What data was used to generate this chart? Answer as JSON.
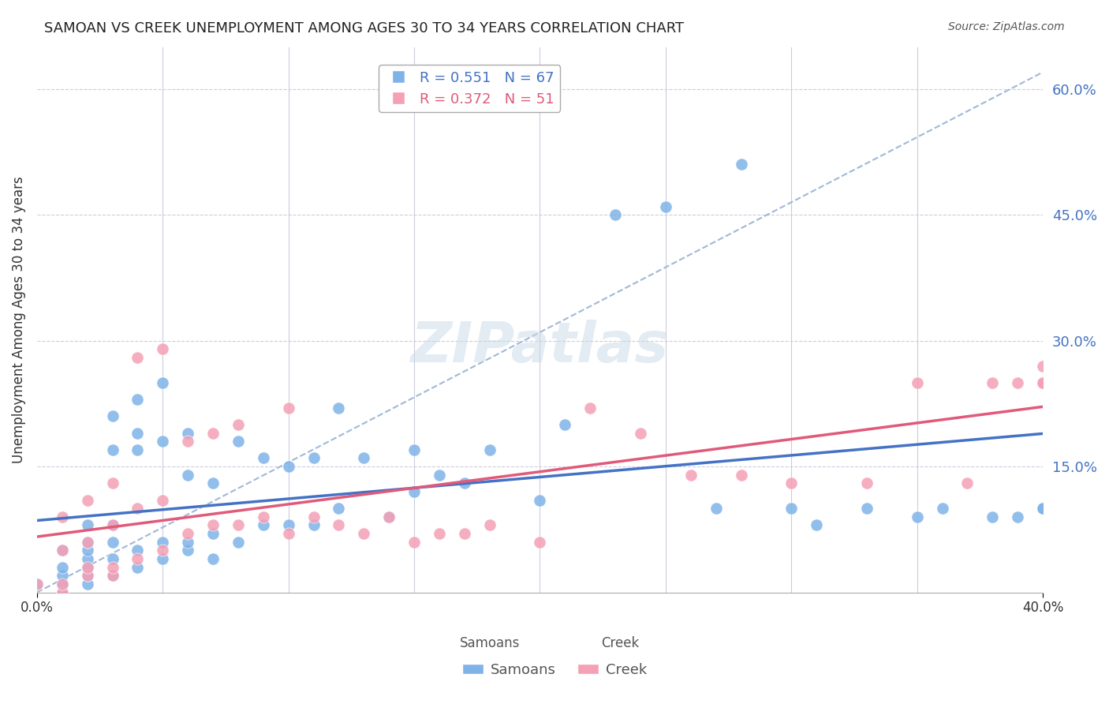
{
  "title": "SAMOAN VS CREEK UNEMPLOYMENT AMONG AGES 30 TO 34 YEARS CORRELATION CHART",
  "source": "Source: ZipAtlas.com",
  "xlabel": "",
  "ylabel": "Unemployment Among Ages 30 to 34 years",
  "xlim": [
    0.0,
    0.4
  ],
  "ylim": [
    0.0,
    0.65
  ],
  "xticks": [
    0.0,
    0.4
  ],
  "xtick_labels": [
    "0.0%",
    "40.0%"
  ],
  "yticks_right": [
    0.15,
    0.3,
    0.45,
    0.6
  ],
  "ytick_right_labels": [
    "15.0%",
    "30.0%",
    "45.0%",
    "60.0%"
  ],
  "grid_color": "#ccccdd",
  "background_color": "#ffffff",
  "samoans_color": "#7fb3e8",
  "creek_color": "#f4a0b5",
  "samoans_line_color": "#4472c4",
  "creek_line_color": "#e05a7a",
  "dashed_line_color": "#a0b8d8",
  "legend_samoan_r": "0.551",
  "legend_samoan_n": "67",
  "legend_creek_r": "0.372",
  "legend_creek_n": "51",
  "watermark": "ZIPatlas",
  "samoans_x": [
    0.0,
    0.01,
    0.01,
    0.01,
    0.01,
    0.01,
    0.02,
    0.02,
    0.02,
    0.02,
    0.02,
    0.02,
    0.02,
    0.03,
    0.03,
    0.03,
    0.03,
    0.03,
    0.03,
    0.04,
    0.04,
    0.04,
    0.04,
    0.04,
    0.05,
    0.05,
    0.05,
    0.05,
    0.06,
    0.06,
    0.06,
    0.06,
    0.07,
    0.07,
    0.07,
    0.08,
    0.08,
    0.09,
    0.09,
    0.1,
    0.1,
    0.11,
    0.11,
    0.12,
    0.12,
    0.13,
    0.14,
    0.15,
    0.15,
    0.16,
    0.17,
    0.18,
    0.2,
    0.21,
    0.23,
    0.25,
    0.27,
    0.28,
    0.3,
    0.31,
    0.33,
    0.35,
    0.36,
    0.38,
    0.39,
    0.4,
    0.4
  ],
  "samoans_y": [
    0.01,
    0.0,
    0.01,
    0.02,
    0.03,
    0.05,
    0.01,
    0.02,
    0.03,
    0.04,
    0.05,
    0.06,
    0.08,
    0.02,
    0.04,
    0.06,
    0.08,
    0.17,
    0.21,
    0.03,
    0.05,
    0.17,
    0.19,
    0.23,
    0.04,
    0.06,
    0.18,
    0.25,
    0.05,
    0.06,
    0.14,
    0.19,
    0.04,
    0.07,
    0.13,
    0.06,
    0.18,
    0.08,
    0.16,
    0.08,
    0.15,
    0.08,
    0.16,
    0.1,
    0.22,
    0.16,
    0.09,
    0.12,
    0.17,
    0.14,
    0.13,
    0.17,
    0.11,
    0.2,
    0.45,
    0.46,
    0.1,
    0.51,
    0.1,
    0.08,
    0.1,
    0.09,
    0.1,
    0.09,
    0.09,
    0.1,
    0.1
  ],
  "creek_x": [
    0.0,
    0.01,
    0.01,
    0.01,
    0.01,
    0.02,
    0.02,
    0.02,
    0.02,
    0.03,
    0.03,
    0.03,
    0.03,
    0.04,
    0.04,
    0.04,
    0.05,
    0.05,
    0.05,
    0.06,
    0.06,
    0.07,
    0.07,
    0.08,
    0.08,
    0.09,
    0.1,
    0.1,
    0.11,
    0.12,
    0.13,
    0.14,
    0.15,
    0.16,
    0.17,
    0.18,
    0.2,
    0.22,
    0.24,
    0.26,
    0.28,
    0.3,
    0.33,
    0.35,
    0.37,
    0.38,
    0.39,
    0.4,
    0.4,
    0.4,
    0.4
  ],
  "creek_y": [
    0.01,
    0.0,
    0.01,
    0.05,
    0.09,
    0.02,
    0.03,
    0.06,
    0.11,
    0.02,
    0.03,
    0.08,
    0.13,
    0.04,
    0.1,
    0.28,
    0.05,
    0.11,
    0.29,
    0.07,
    0.18,
    0.08,
    0.19,
    0.08,
    0.2,
    0.09,
    0.07,
    0.22,
    0.09,
    0.08,
    0.07,
    0.09,
    0.06,
    0.07,
    0.07,
    0.08,
    0.06,
    0.22,
    0.19,
    0.14,
    0.14,
    0.13,
    0.13,
    0.25,
    0.13,
    0.25,
    0.25,
    0.25,
    0.25,
    0.27,
    0.25
  ]
}
